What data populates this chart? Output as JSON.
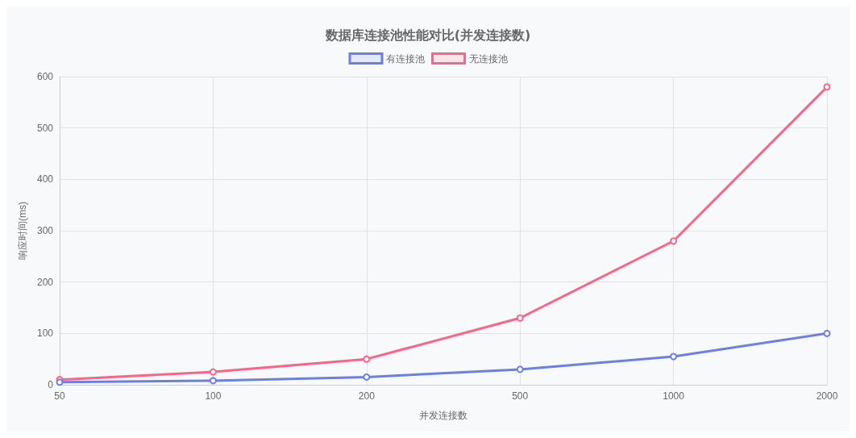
{
  "chart_data": {
    "type": "line",
    "title": "数据库连接池性能对比(并发连接数)",
    "xlabel": "并发连接数",
    "ylabel": "响应时间(ms)",
    "categories": [
      "50",
      "100",
      "200",
      "500",
      "1000",
      "2000"
    ],
    "series": [
      {
        "name": "有连接池",
        "color": "#6b7fe8",
        "values": [
          5,
          8,
          15,
          30,
          55,
          100
        ]
      },
      {
        "name": "无连接池",
        "color": "#ff6384",
        "values": [
          10,
          25,
          50,
          130,
          280,
          580
        ]
      }
    ],
    "ylim": [
      0,
      600
    ],
    "yticks": [
      0,
      100,
      200,
      300,
      400,
      500,
      600
    ],
    "grid": true,
    "legend": "top",
    "marker": "circle",
    "line_style": "solid"
  }
}
